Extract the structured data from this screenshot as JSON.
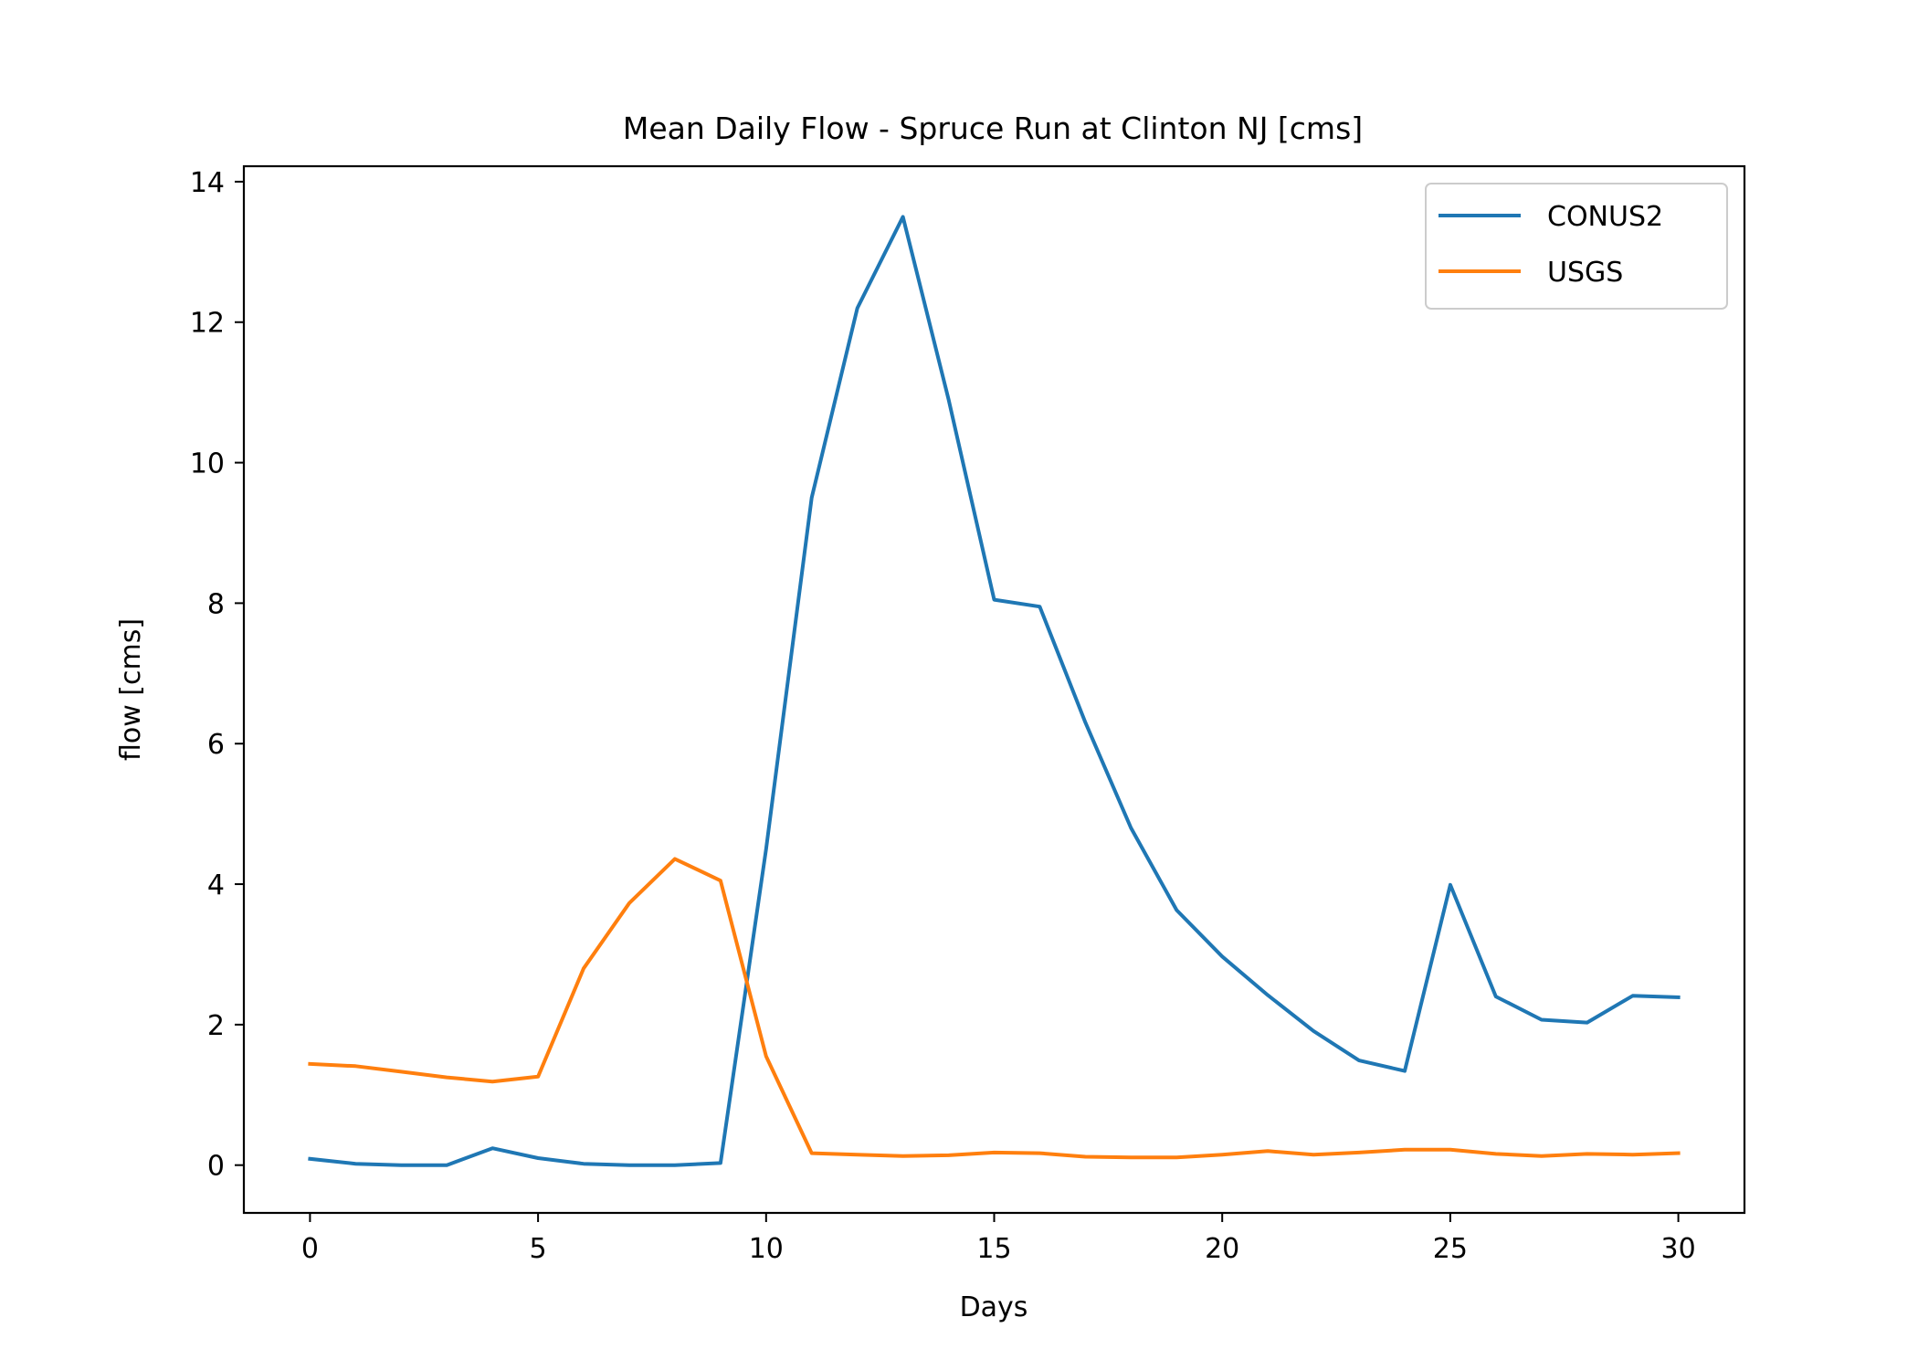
{
  "chart_data": {
    "type": "line",
    "title": "Mean Daily Flow - Spruce Run at Clinton NJ [cms]",
    "xlabel": "Days",
    "ylabel": "flow [cms]",
    "xlim": [
      -1.45,
      31.45
    ],
    "ylim": [
      -0.68,
      14.22
    ],
    "xticks": [
      0,
      5,
      10,
      15,
      20,
      25,
      30
    ],
    "yticks": [
      0,
      2,
      4,
      6,
      8,
      10,
      12,
      14
    ],
    "grid": false,
    "legend_position": "top-right",
    "x": [
      0,
      1,
      2,
      3,
      4,
      5,
      6,
      7,
      8,
      9,
      10,
      11,
      12,
      13,
      14,
      15,
      16,
      17,
      18,
      19,
      20,
      21,
      22,
      23,
      24,
      25,
      26,
      27,
      28,
      29,
      30
    ],
    "series": [
      {
        "name": "CONUS2",
        "color": "#1f77b4",
        "values": [
          0.09,
          0.02,
          0.0,
          0.0,
          0.24,
          0.1,
          0.02,
          0.0,
          0.0,
          0.03,
          4.5,
          9.5,
          12.2,
          13.5,
          10.9,
          8.05,
          7.95,
          6.3,
          4.8,
          3.63,
          2.97,
          2.42,
          1.91,
          1.49,
          1.34,
          3.99,
          2.4,
          2.07,
          2.03,
          2.41,
          2.39
        ]
      },
      {
        "name": "USGS",
        "color": "#ff7f0e",
        "values": [
          1.44,
          1.41,
          1.33,
          1.25,
          1.19,
          1.26,
          2.8,
          3.73,
          4.36,
          4.05,
          1.55,
          0.17,
          0.15,
          0.13,
          0.14,
          0.18,
          0.17,
          0.12,
          0.11,
          0.11,
          0.15,
          0.2,
          0.15,
          0.18,
          0.22,
          0.22,
          0.16,
          0.13,
          0.16,
          0.15,
          0.17
        ]
      }
    ]
  }
}
